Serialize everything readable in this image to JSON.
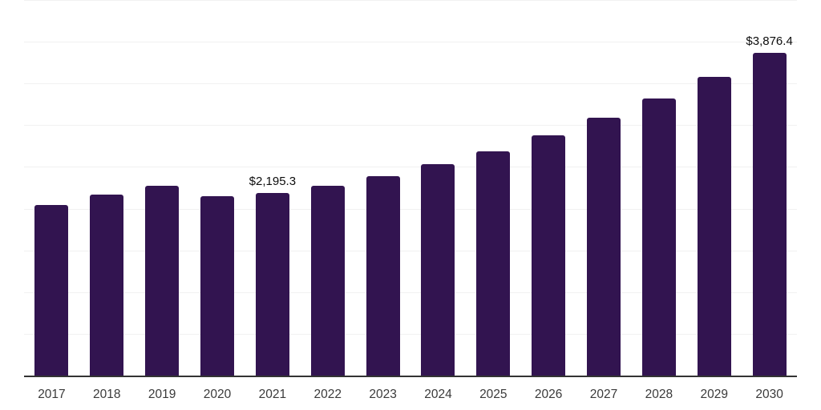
{
  "chart_data": {
    "type": "bar",
    "title": "",
    "xlabel": "",
    "ylabel": "",
    "categories": [
      "2017",
      "2018",
      "2019",
      "2020",
      "2021",
      "2022",
      "2023",
      "2024",
      "2025",
      "2026",
      "2027",
      "2028",
      "2029",
      "2030"
    ],
    "values": [
      2052,
      2177,
      2280,
      2163,
      2195.3,
      2283,
      2400,
      2545,
      2698,
      2890,
      3097,
      3327,
      3590,
      3876.4
    ],
    "point_labels": [
      "",
      "",
      "",
      "",
      "$2,195.3",
      "",
      "",
      "",
      "",
      "",
      "",
      "",
      "",
      "$3,876.4"
    ],
    "ylim": [
      0,
      4500
    ],
    "gridline_step": 500,
    "grid": "horizontal-only",
    "legend": "none",
    "colors": {
      "bar": "#321450",
      "gridline": "#f1f1f1",
      "axis": "#333333",
      "tick_label": "#3a3a3a",
      "data_label": "#0d0d0d",
      "background": "#ffffff"
    }
  }
}
